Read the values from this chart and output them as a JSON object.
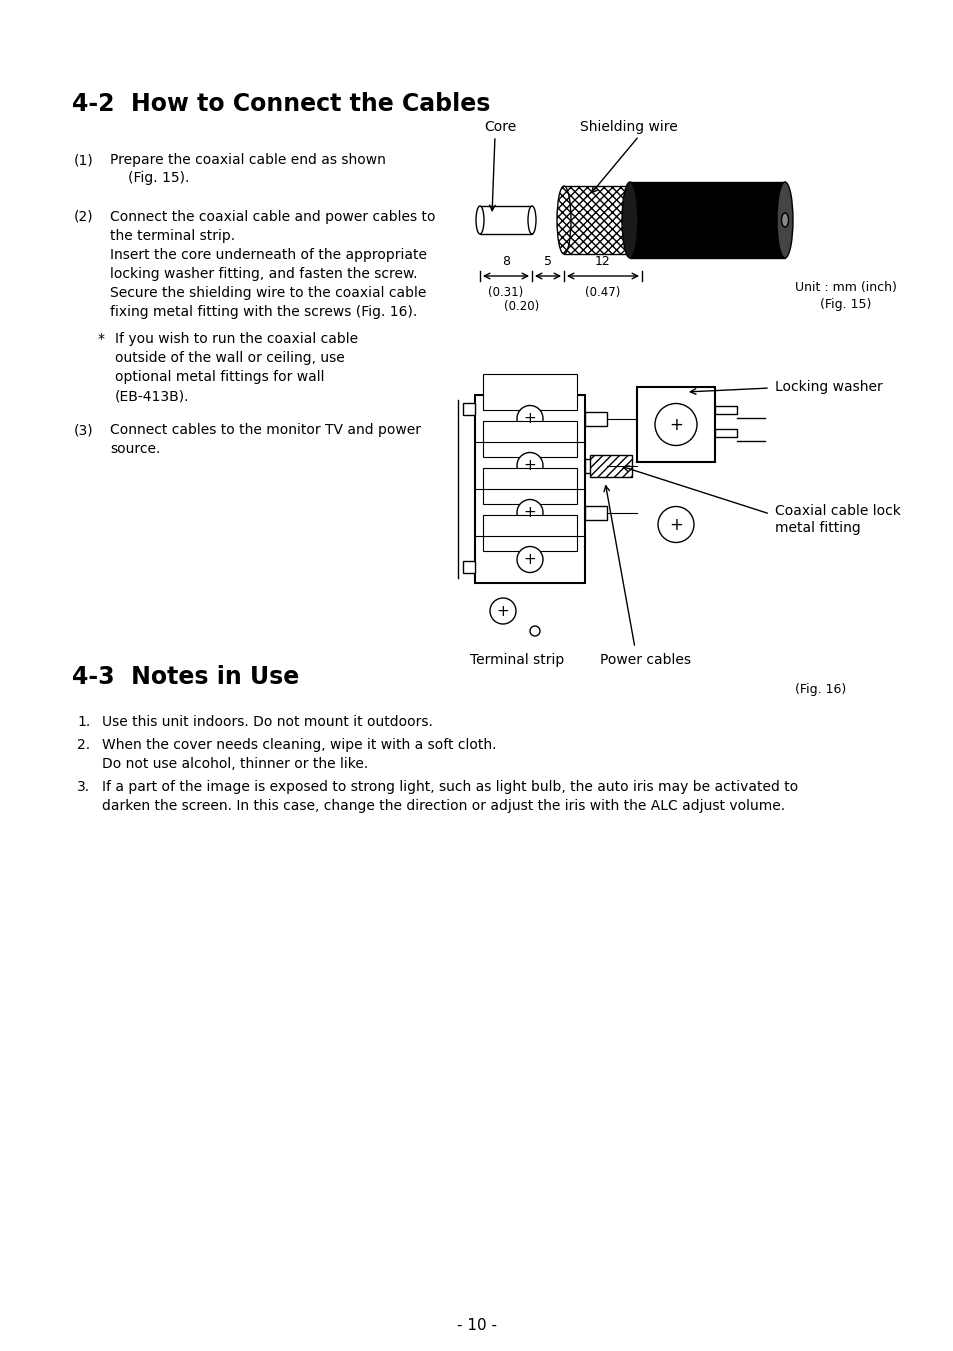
{
  "bg_color": "#ffffff",
  "title_42": "4-2  How to Connect the Cables",
  "title_43": "4-3  Notes in Use",
  "page_number": "- 10 -",
  "fig15": {
    "core_label": "Core",
    "shielding_label": "Shielding wire",
    "dim1": "8",
    "dim2": "5",
    "dim3": "12",
    "d1_inch": "(0.31)",
    "d2_inch": "(0.20)",
    "d3_inch": "(0.47)",
    "unit_label": "Unit : mm (inch)",
    "fig_label": "(Fig. 15)"
  },
  "fig16": {
    "locking_washer": "Locking washer",
    "coaxial_lock_line1": "Coaxial cable lock",
    "coaxial_lock_line2": "metal fitting",
    "terminal_strip": "Terminal strip",
    "power_cables": "Power cables",
    "fig_label": "(Fig. 16)"
  },
  "text_items_42": [
    [
      "(1)",
      "Prepare the coaxial cable end as shown",
      "(Fig. 15)."
    ],
    [
      "(2)",
      "Connect the coaxial cable and power cables to",
      "the terminal strip.",
      "Insert the core underneath of the appropriate",
      "locking washer fitting, and fasten the screw.",
      "Secure the shielding wire to the coaxial cable",
      "fixing metal fitting with the screws (Fig. 16)."
    ],
    [
      "*",
      "If you wish to run the coaxial cable",
      "outside of the wall or ceiling, use",
      "optional metal fittings for wall",
      "(EB-413B)."
    ],
    [
      "(3)",
      "Connect cables to the monitor TV and power",
      "source."
    ]
  ],
  "text_items_43": [
    "Use this unit indoors. Do not mount it outdoors.",
    "When the cover needs cleaning, wipe it with a soft cloth.",
    "Do not use alcohol, thinner or the like.",
    "If a part of the image is exposed to strong light, such as light bulb, the auto iris may be activated to",
    "darken the screen. In this case, change the direction or adjust the iris with the ALC adjust volume."
  ]
}
